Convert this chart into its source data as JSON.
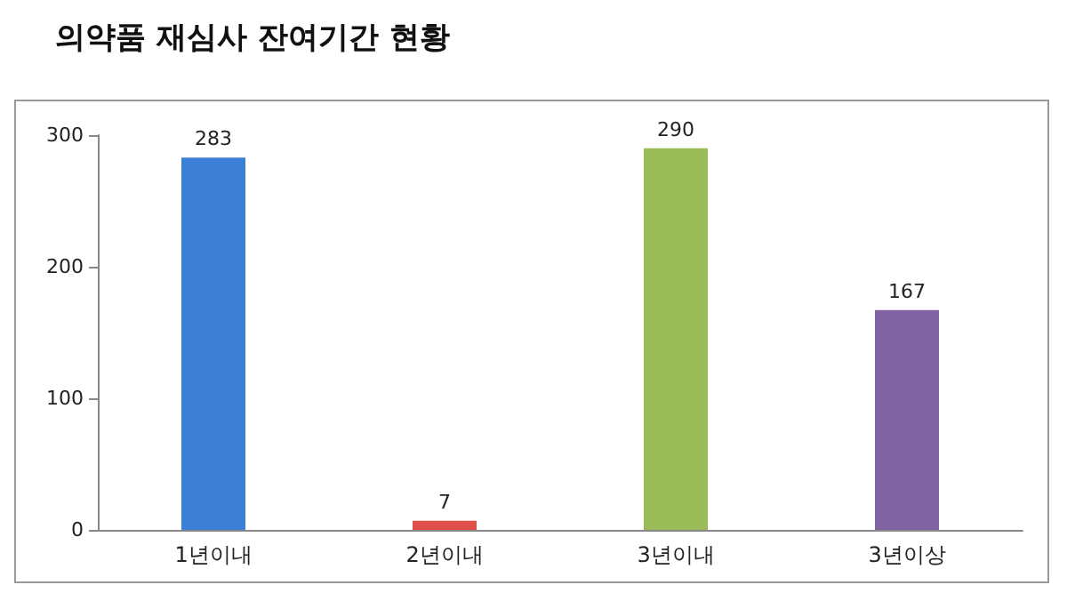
{
  "chart_data": {
    "type": "bar",
    "title": "의약품 재심사 잔여기간 현황",
    "categories": [
      "1년이내",
      "2년이내",
      "3년이내",
      "3년이상"
    ],
    "values": [
      283,
      7,
      290,
      167
    ],
    "colors": [
      "#3b7fd6",
      "#e0504a",
      "#9bbb59",
      "#8064a2"
    ],
    "ylim": [
      0,
      300
    ],
    "yticks": [
      0,
      100,
      200,
      300
    ],
    "grid": false,
    "data_labels": true
  }
}
